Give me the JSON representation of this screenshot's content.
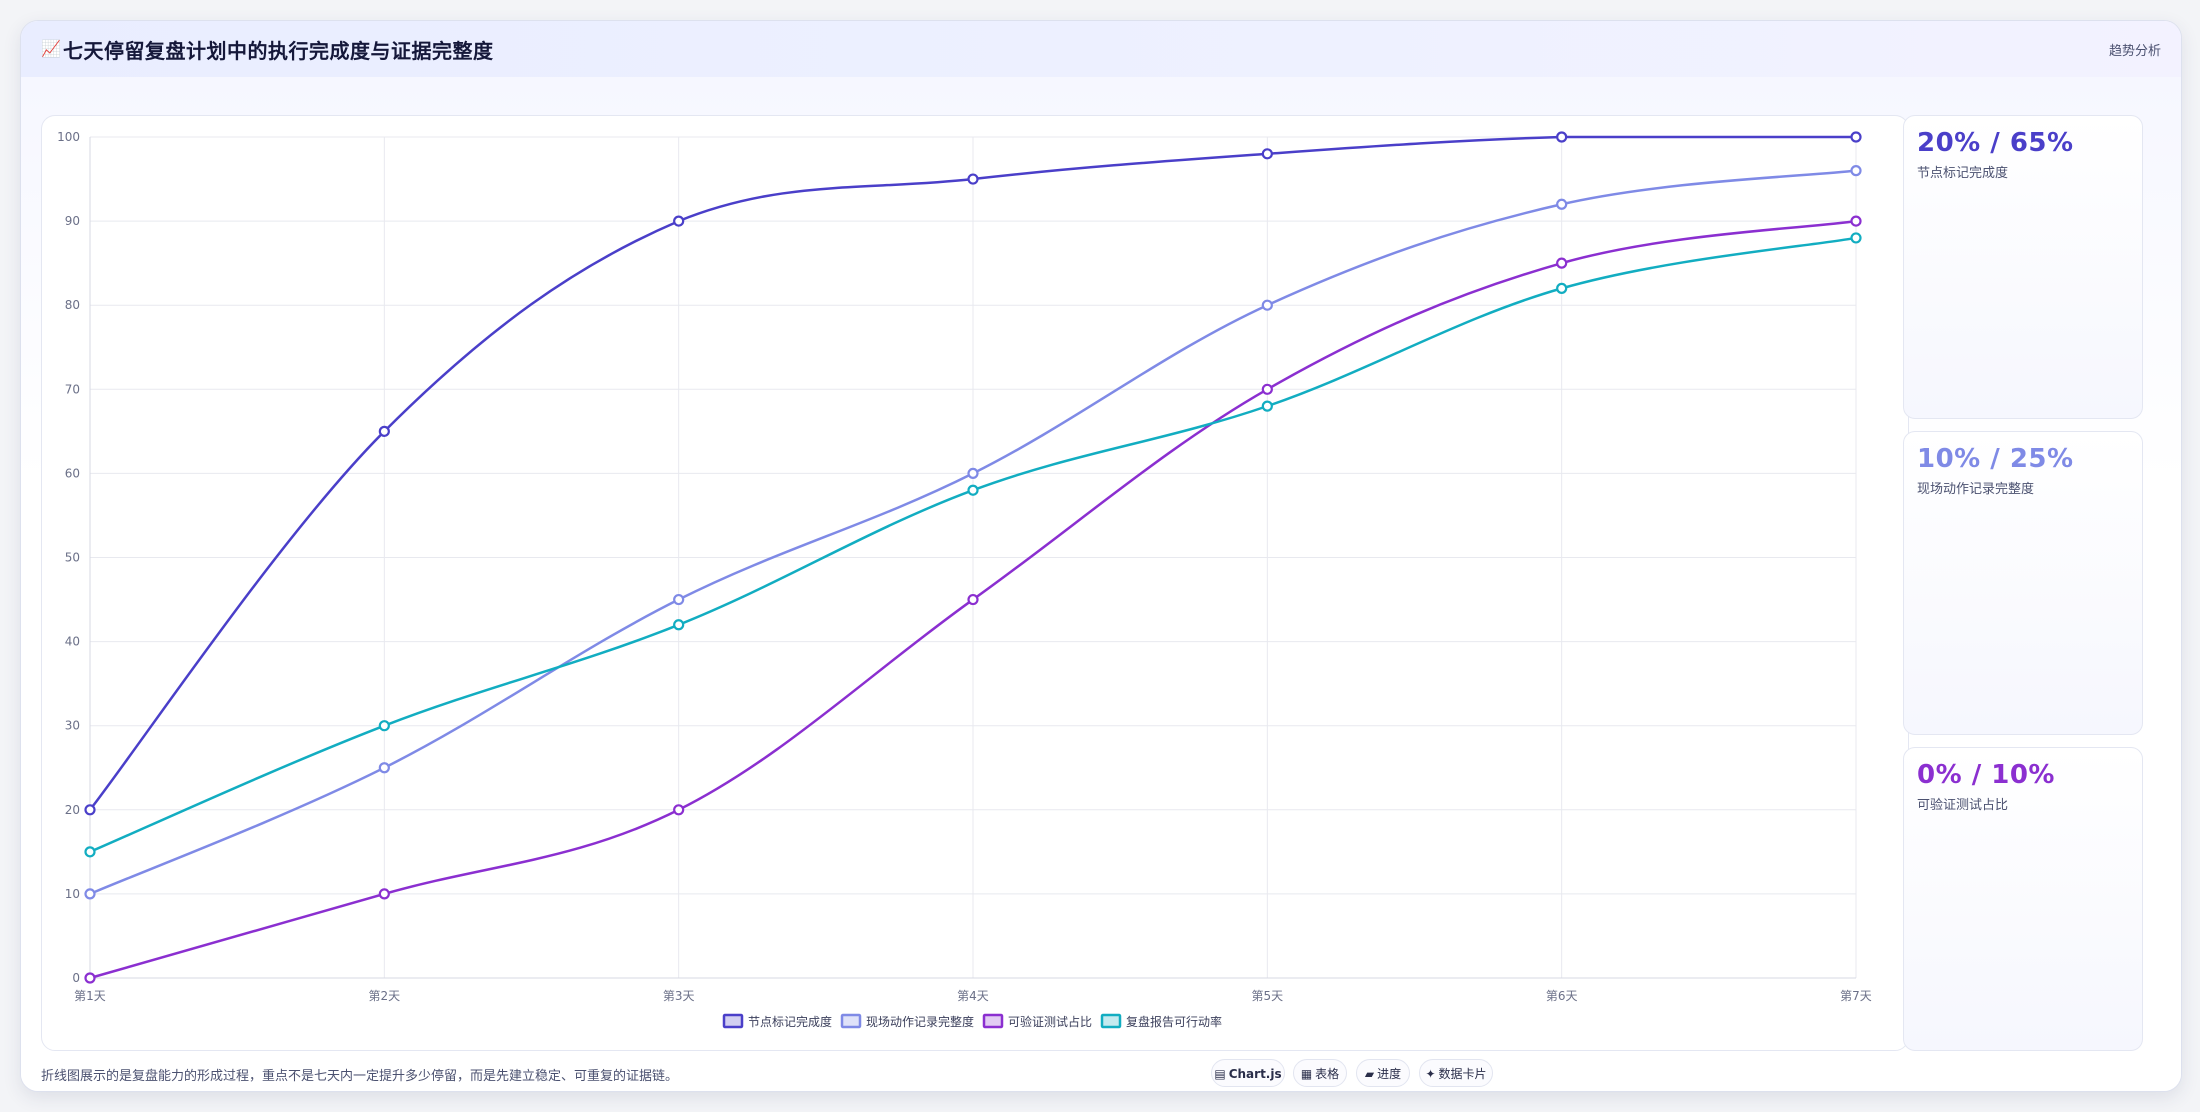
{
  "header": {
    "icon": "📈",
    "icon_name": "chart-line-icon",
    "title": "七天停留复盘计划中的执行完成度与证据完整度",
    "tag": "趋势分析"
  },
  "side_cards": [
    {
      "value": "20% / 65%",
      "label": "节点标记完成度",
      "color": "#4a3fc9"
    },
    {
      "value": "10% / 25%",
      "label": "现场动作记录完整度",
      "color": "#7f8ae6"
    },
    {
      "value": "0% / 10%",
      "label": "可验证测试占比",
      "color": "#8b2fd0"
    }
  ],
  "footer": {
    "note": "折线图展示的是复盘能力的形成过程，重点不是七天内一定提升多少停留，而是先建立稳定、可重复的证据链。",
    "chips": [
      {
        "icon": "▤",
        "icon_name": "chart-icon",
        "label": "Chart.js"
      },
      {
        "icon": "▦",
        "icon_name": "table-icon",
        "label": "表格"
      },
      {
        "icon": "▰",
        "icon_name": "progress-icon",
        "label": "进度"
      },
      {
        "icon": "✦",
        "icon_name": "data-card-icon",
        "label": "数据卡片"
      }
    ]
  },
  "chart_data": {
    "type": "line",
    "categories": [
      "第1天",
      "第2天",
      "第3天",
      "第4天",
      "第5天",
      "第6天",
      "第7天"
    ],
    "ylim": [
      0,
      100
    ],
    "yticks": [
      0,
      10,
      20,
      30,
      40,
      50,
      60,
      70,
      80,
      90,
      100
    ],
    "grid": true,
    "legend_position": "bottom",
    "series": [
      {
        "name": "节点标记完成度",
        "color": "#4a3fc9",
        "values": [
          20,
          65,
          90,
          95,
          98,
          100,
          100
        ]
      },
      {
        "name": "现场动作记录完整度",
        "color": "#7f8ae6",
        "values": [
          10,
          25,
          45,
          60,
          80,
          92,
          96
        ]
      },
      {
        "name": "可验证测试占比",
        "color": "#8b2fd0",
        "values": [
          0,
          10,
          20,
          45,
          70,
          85,
          90
        ]
      },
      {
        "name": "复盘报告可行动率",
        "color": "#12adc1",
        "values": [
          15,
          30,
          42,
          58,
          68,
          82,
          88
        ]
      }
    ]
  }
}
